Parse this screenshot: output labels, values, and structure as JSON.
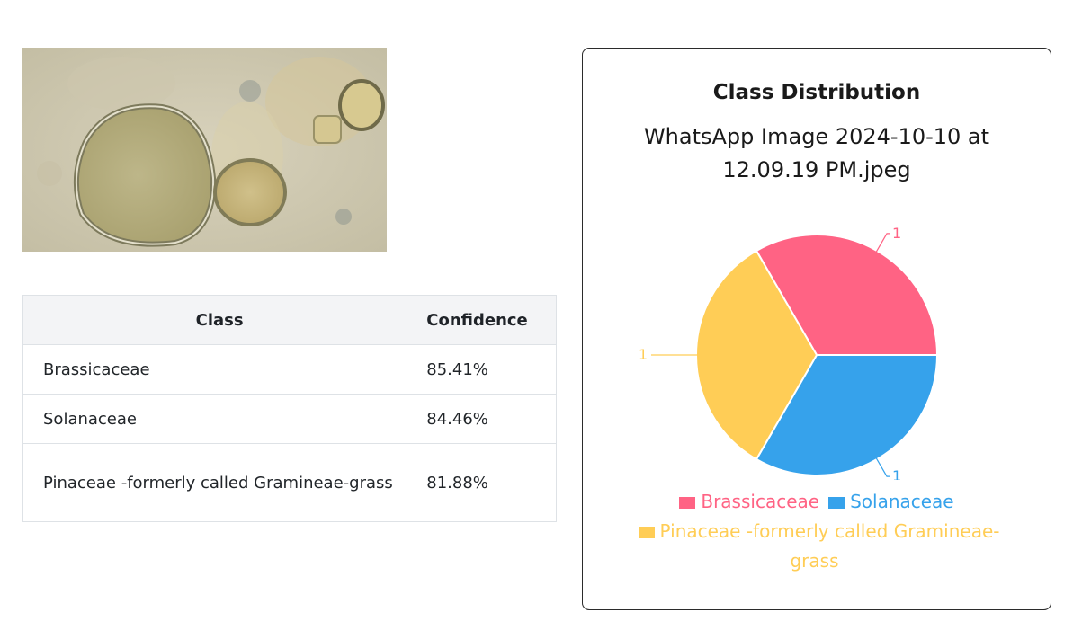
{
  "image": {
    "description_icon": "microscope-pollen-image"
  },
  "table": {
    "headers": {
      "class": "Class",
      "confidence": "Confidence"
    },
    "rows": [
      {
        "class": "Brassicaceae",
        "confidence": "85.41%"
      },
      {
        "class": "Solanaceae",
        "confidence": "84.46%"
      },
      {
        "class": "Pinaceae -formerly called Gramineae-grass",
        "confidence": "81.88%"
      }
    ]
  },
  "chart_data": {
    "type": "pie",
    "title": "Class Distribution",
    "subtitle": "WhatsApp Image 2024-10-10 at 12.09.19 PM.jpeg",
    "categories": [
      "Brassicaceae",
      "Solanaceae",
      "Pinaceae -formerly called Gramineae-grass"
    ],
    "values": [
      1,
      1,
      1
    ],
    "data_labels": [
      "1",
      "1",
      "1"
    ],
    "colors": [
      "#ff6384",
      "#36a2eb",
      "#ffcd56"
    ],
    "legend_position": "bottom"
  }
}
